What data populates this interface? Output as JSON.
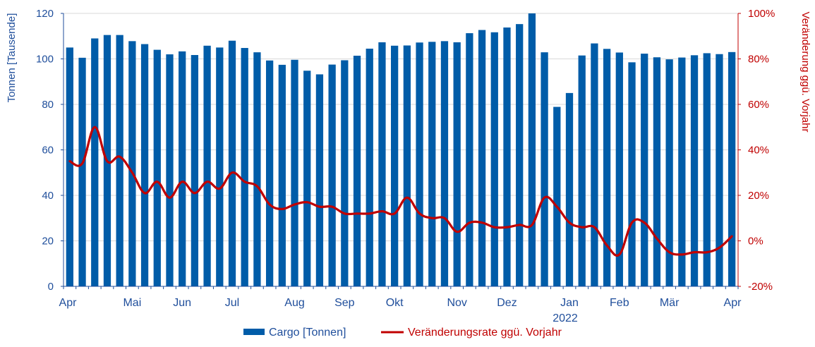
{
  "chart_data": {
    "type": "bar+line",
    "title": "",
    "ylabel_left": "Tonnen [Tausende]",
    "ylabel_right": "Veränderung ggü. Vorjahr",
    "ylim_left": [
      0,
      120
    ],
    "yticks_left": [
      0,
      20,
      40,
      60,
      80,
      100,
      120
    ],
    "ytick_labels_left": [
      "0",
      "20",
      "40",
      "60",
      "80",
      "100",
      "120"
    ],
    "ylim_right": [
      -20,
      100
    ],
    "yticks_right": [
      -20,
      0,
      20,
      40,
      60,
      80,
      100
    ],
    "ytick_labels_right": [
      "-20%",
      "0%",
      "20%",
      "40%",
      "60%",
      "80%",
      "100%"
    ],
    "x_month_labels": [
      {
        "label": "Apr",
        "week": 0
      },
      {
        "label": "Mai",
        "week": 5
      },
      {
        "label": "Jun",
        "week": 9
      },
      {
        "label": "Jul",
        "week": 13
      },
      {
        "label": "Aug",
        "week": 18
      },
      {
        "label": "Sep",
        "week": 22
      },
      {
        "label": "Okt",
        "week": 26
      },
      {
        "label": "Nov",
        "week": 31
      },
      {
        "label": "Dez",
        "week": 35
      },
      {
        "label": "Jan",
        "week": 40
      },
      {
        "label": "Feb",
        "week": 44
      },
      {
        "label": "Mär",
        "week": 48
      },
      {
        "label": "Apr",
        "week": 53
      }
    ],
    "year_label": {
      "label": "2022",
      "week": 40
    },
    "grid": true,
    "legend_position": "bottom",
    "series": [
      {
        "name": "Cargo [Tonnen]",
        "type": "bar",
        "axis": "left",
        "color": "#005ca8",
        "values": [
          105,
          100.5,
          109,
          110.5,
          110.5,
          107.8,
          106.5,
          104,
          102,
          103.3,
          101.7,
          105.8,
          105,
          108,
          104.8,
          102.9,
          99.3,
          97.4,
          99.6,
          94.8,
          93.2,
          97.5,
          99.4,
          101.4,
          104.5,
          107.3,
          105.8,
          105.9,
          107.2,
          107.5,
          107.8,
          107.3,
          111.3,
          112.7,
          111.7,
          113.8,
          115.3,
          120,
          102.9,
          78.9,
          85,
          101.5,
          106.8,
          104.4,
          102.8,
          98.5,
          102.3,
          100.7,
          99.8,
          100.6,
          101.6,
          102.5,
          102.1,
          103
        ]
      },
      {
        "name": "Veränderungsrate ggü. Vorjahr",
        "type": "line",
        "axis": "right",
        "color": "#c00000",
        "values": [
          35,
          34,
          50,
          35,
          37,
          30,
          21,
          26,
          19,
          26,
          21,
          26,
          23,
          30,
          26,
          24,
          16,
          14,
          16,
          17,
          15,
          15,
          12,
          12,
          12,
          13,
          12,
          19,
          12,
          10,
          10,
          4,
          8,
          8,
          6,
          6,
          7,
          7,
          19,
          15,
          8,
          6,
          6,
          -2,
          -6,
          8,
          8,
          1,
          -5,
          -6,
          -5,
          -5,
          -3,
          2
        ]
      }
    ]
  },
  "colors": {
    "bar": "#005ca8",
    "line": "#c00000",
    "left_axis": "#1f4e9b",
    "right_axis": "#c00000",
    "grid": "#d9d9d9"
  },
  "legend": {
    "bar_label": "Cargo [Tonnen]",
    "line_label": "Veränderungsrate ggü. Vorjahr"
  }
}
